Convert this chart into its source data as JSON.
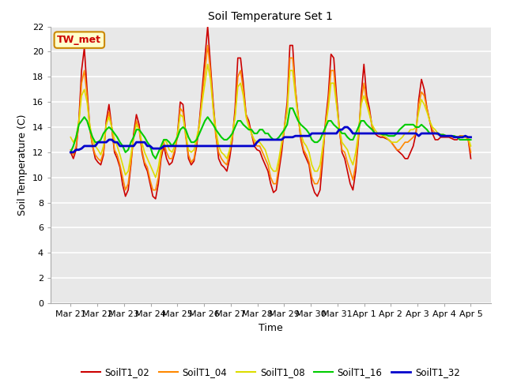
{
  "title": "Soil Temperature Set 1",
  "xlabel": "Time",
  "ylabel": "Soil Temperature (C)",
  "ylim": [
    0,
    22
  ],
  "yticks": [
    0,
    2,
    4,
    6,
    8,
    10,
    12,
    14,
    16,
    18,
    20,
    22
  ],
  "annotation": "TW_met",
  "colors": {
    "SoilT1_02": "#cc0000",
    "SoilT1_04": "#ff8800",
    "SoilT1_08": "#dddd00",
    "SoilT1_16": "#00cc00",
    "SoilT1_32": "#0000cc"
  },
  "x_labels": [
    "Mar 21",
    "Mar 22",
    "Mar 23",
    "Mar 24",
    "Mar 25",
    "Mar 26",
    "Mar 27",
    "Mar 28",
    "Mar 29",
    "Mar 30",
    "Mar 31",
    "Apr 1",
    "Apr 2",
    "Apr 3",
    "Apr 4",
    "Apr 5"
  ],
  "SoilT1_02": [
    12.0,
    11.5,
    12.2,
    14.5,
    18.5,
    20.3,
    17.0,
    14.0,
    12.5,
    11.5,
    11.2,
    11.0,
    11.8,
    14.5,
    15.8,
    14.0,
    12.0,
    11.5,
    10.8,
    9.4,
    8.5,
    9.0,
    11.0,
    13.5,
    15.0,
    14.2,
    12.0,
    11.0,
    10.5,
    9.5,
    8.5,
    8.3,
    9.5,
    11.5,
    12.5,
    11.5,
    11.0,
    11.2,
    12.0,
    13.5,
    16.0,
    15.8,
    13.5,
    11.5,
    11.0,
    11.3,
    12.5,
    14.5,
    17.0,
    19.5,
    22.0,
    19.0,
    16.0,
    13.5,
    11.5,
    11.0,
    10.8,
    10.5,
    11.5,
    13.0,
    15.5,
    19.5,
    19.5,
    17.5,
    15.0,
    14.5,
    13.5,
    12.5,
    12.2,
    12.1,
    11.5,
    11.0,
    10.5,
    9.5,
    8.8,
    9.0,
    10.5,
    12.0,
    14.0,
    16.0,
    20.5,
    20.5,
    17.0,
    15.0,
    13.0,
    12.0,
    11.5,
    11.0,
    9.5,
    8.8,
    8.5,
    9.0,
    11.5,
    14.5,
    16.5,
    19.8,
    19.5,
    16.5,
    14.0,
    12.0,
    11.5,
    10.5,
    9.5,
    9.0,
    10.5,
    13.0,
    16.5,
    19.0,
    16.5,
    15.5,
    14.0,
    13.5,
    13.3,
    13.2,
    13.2,
    13.1,
    13.0,
    12.8,
    12.5,
    12.2,
    12.0,
    11.8,
    11.5,
    11.5,
    12.0,
    12.5,
    13.5,
    16.2,
    17.8,
    17.0,
    15.5,
    14.5,
    13.5,
    13.0,
    13.0,
    13.2,
    13.2,
    13.2,
    13.2,
    13.1,
    13.0,
    13.0,
    13.3,
    13.3,
    13.2,
    13.1,
    11.5
  ],
  "SoilT1_04": [
    12.2,
    11.8,
    12.5,
    14.2,
    17.5,
    18.5,
    16.5,
    13.8,
    12.5,
    11.8,
    11.5,
    11.3,
    12.0,
    14.2,
    15.2,
    14.0,
    12.2,
    11.8,
    11.0,
    10.0,
    9.0,
    9.5,
    11.2,
    13.2,
    14.5,
    13.8,
    12.2,
    11.2,
    10.8,
    9.8,
    9.0,
    9.0,
    10.0,
    11.8,
    12.8,
    12.0,
    11.5,
    11.5,
    12.2,
    13.2,
    15.5,
    15.2,
    13.2,
    11.8,
    11.2,
    11.5,
    12.8,
    14.2,
    16.5,
    18.5,
    20.5,
    18.5,
    15.5,
    13.2,
    12.0,
    11.5,
    11.2,
    11.0,
    12.0,
    13.2,
    15.0,
    18.0,
    18.5,
    17.0,
    15.0,
    14.2,
    13.5,
    12.8,
    12.5,
    12.5,
    12.0,
    11.5,
    11.0,
    10.0,
    9.5,
    9.5,
    11.0,
    12.5,
    13.8,
    15.5,
    19.5,
    19.5,
    17.0,
    14.8,
    13.2,
    12.2,
    11.8,
    11.2,
    10.0,
    9.5,
    9.5,
    10.0,
    12.0,
    14.2,
    16.0,
    18.5,
    18.5,
    16.0,
    13.8,
    12.2,
    12.0,
    11.2,
    10.5,
    9.8,
    11.0,
    13.2,
    16.0,
    17.5,
    16.0,
    15.2,
    14.0,
    13.5,
    13.5,
    13.4,
    13.3,
    13.2,
    13.0,
    12.8,
    12.5,
    12.2,
    12.2,
    12.5,
    12.8,
    12.8,
    13.0,
    13.2,
    13.5,
    15.8,
    16.8,
    16.5,
    15.5,
    14.5,
    13.8,
    13.5,
    13.4,
    13.4,
    13.4,
    13.3,
    13.3,
    13.2,
    13.2,
    13.2,
    13.3,
    13.3,
    13.2,
    13.1,
    12.0
  ],
  "SoilT1_08": [
    13.2,
    12.8,
    13.2,
    14.5,
    16.5,
    17.0,
    16.0,
    14.2,
    13.0,
    12.5,
    12.2,
    11.8,
    12.5,
    14.2,
    14.8,
    14.0,
    13.0,
    12.5,
    11.8,
    11.0,
    10.2,
    10.5,
    11.8,
    13.2,
    14.2,
    13.8,
    12.8,
    12.0,
    11.5,
    11.0,
    10.5,
    10.0,
    10.8,
    12.2,
    13.0,
    12.8,
    12.2,
    12.0,
    12.5,
    13.5,
    15.0,
    14.8,
    13.5,
    12.2,
    12.0,
    12.2,
    13.2,
    14.2,
    16.0,
    17.5,
    19.0,
    17.8,
    15.5,
    13.8,
    12.5,
    12.0,
    11.8,
    11.5,
    12.2,
    13.5,
    14.8,
    17.2,
    17.5,
    16.5,
    14.8,
    14.0,
    13.5,
    13.0,
    12.8,
    12.8,
    12.5,
    12.2,
    11.5,
    10.8,
    10.5,
    10.5,
    11.5,
    12.8,
    14.0,
    15.2,
    18.5,
    18.5,
    16.5,
    14.8,
    13.5,
    12.8,
    12.5,
    12.0,
    11.0,
    10.5,
    10.5,
    11.0,
    12.5,
    14.0,
    15.5,
    17.5,
    17.5,
    15.8,
    14.0,
    12.8,
    12.5,
    12.2,
    11.5,
    11.0,
    12.0,
    13.5,
    15.8,
    16.5,
    15.8,
    15.0,
    14.2,
    13.8,
    13.5,
    13.4,
    13.3,
    13.2,
    13.0,
    12.8,
    12.8,
    12.8,
    13.0,
    13.2,
    13.5,
    13.5,
    13.8,
    13.8,
    14.0,
    15.2,
    16.2,
    15.8,
    15.2,
    14.5,
    14.0,
    13.8,
    13.5,
    13.4,
    13.4,
    13.3,
    13.3,
    13.3,
    13.2,
    13.2,
    13.2,
    13.3,
    13.2,
    13.2,
    12.5
  ],
  "SoilT1_16": [
    12.0,
    12.5,
    13.2,
    14.2,
    14.5,
    14.8,
    14.5,
    13.8,
    13.2,
    12.8,
    12.8,
    13.0,
    13.5,
    13.8,
    14.0,
    13.8,
    13.5,
    13.2,
    12.8,
    12.5,
    12.0,
    12.2,
    12.8,
    13.2,
    13.8,
    13.8,
    13.5,
    13.2,
    12.8,
    12.5,
    11.8,
    11.5,
    12.0,
    12.5,
    13.0,
    13.0,
    12.8,
    12.5,
    12.8,
    13.2,
    13.8,
    14.0,
    13.8,
    13.2,
    12.8,
    12.8,
    13.0,
    13.5,
    14.0,
    14.5,
    14.8,
    14.5,
    14.2,
    13.8,
    13.5,
    13.2,
    13.0,
    13.0,
    13.2,
    13.5,
    14.0,
    14.5,
    14.5,
    14.2,
    14.0,
    13.8,
    13.8,
    13.5,
    13.5,
    13.8,
    13.8,
    13.5,
    13.5,
    13.2,
    13.0,
    13.0,
    13.2,
    13.5,
    13.8,
    14.2,
    15.5,
    15.5,
    15.0,
    14.5,
    14.2,
    14.0,
    13.8,
    13.5,
    13.0,
    12.8,
    12.8,
    13.0,
    13.5,
    14.0,
    14.5,
    14.5,
    14.2,
    14.0,
    13.8,
    13.5,
    13.5,
    13.2,
    13.0,
    13.0,
    13.5,
    14.0,
    14.5,
    14.5,
    14.2,
    14.0,
    13.8,
    13.5,
    13.5,
    13.5,
    13.4,
    13.4,
    13.3,
    13.3,
    13.3,
    13.5,
    13.8,
    14.0,
    14.2,
    14.2,
    14.2,
    14.2,
    14.0,
    14.0,
    14.2,
    14.0,
    13.8,
    13.5,
    13.5,
    13.5,
    13.5,
    13.4,
    13.4,
    13.3,
    13.3,
    13.3,
    13.3,
    13.2,
    13.0,
    13.0,
    13.0,
    13.0,
    13.0
  ],
  "SoilT1_32": [
    12.0,
    12.0,
    12.2,
    12.2,
    12.3,
    12.5,
    12.5,
    12.5,
    12.5,
    12.5,
    12.8,
    12.8,
    12.8,
    12.8,
    13.0,
    13.0,
    12.8,
    12.8,
    12.5,
    12.5,
    12.5,
    12.5,
    12.5,
    12.5,
    12.8,
    12.8,
    12.8,
    12.8,
    12.5,
    12.5,
    12.3,
    12.3,
    12.3,
    12.3,
    12.5,
    12.5,
    12.5,
    12.5,
    12.5,
    12.5,
    12.5,
    12.5,
    12.5,
    12.5,
    12.5,
    12.5,
    12.5,
    12.5,
    12.5,
    12.5,
    12.5,
    12.5,
    12.5,
    12.5,
    12.5,
    12.5,
    12.5,
    12.5,
    12.5,
    12.5,
    12.5,
    12.5,
    12.5,
    12.5,
    12.5,
    12.5,
    12.5,
    12.5,
    12.8,
    13.0,
    13.0,
    13.0,
    13.0,
    13.0,
    13.0,
    13.0,
    13.0,
    13.0,
    13.2,
    13.2,
    13.2,
    13.2,
    13.3,
    13.3,
    13.3,
    13.3,
    13.3,
    13.3,
    13.5,
    13.5,
    13.5,
    13.5,
    13.5,
    13.5,
    13.5,
    13.5,
    13.5,
    13.5,
    13.8,
    13.8,
    14.0,
    14.0,
    13.8,
    13.5,
    13.5,
    13.5,
    13.5,
    13.5,
    13.5,
    13.5,
    13.5,
    13.5,
    13.5,
    13.5,
    13.5,
    13.5,
    13.5,
    13.5,
    13.5,
    13.5,
    13.5,
    13.5,
    13.5,
    13.5,
    13.5,
    13.5,
    13.5,
    13.3,
    13.5,
    13.5,
    13.5,
    13.5,
    13.5,
    13.5,
    13.5,
    13.3,
    13.3,
    13.3,
    13.3,
    13.3,
    13.2,
    13.2,
    13.2,
    13.2,
    13.3,
    13.2,
    13.2
  ]
}
